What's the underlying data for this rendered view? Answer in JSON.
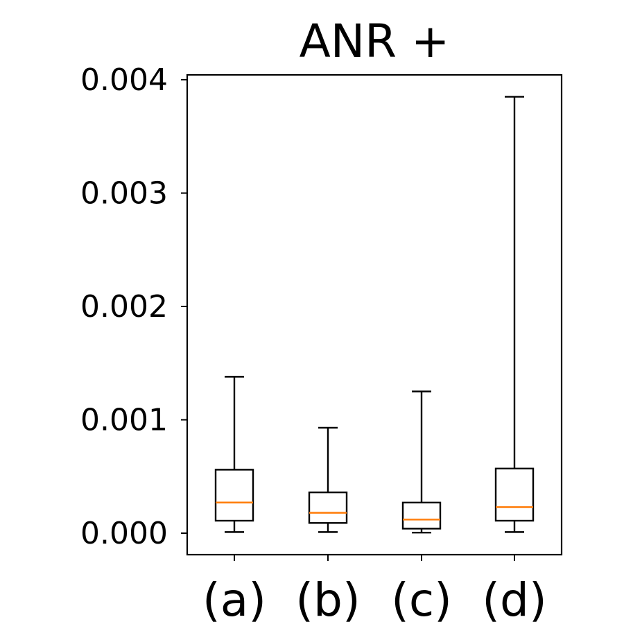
{
  "chart_data": {
    "type": "box",
    "title": "ANR +",
    "xlabel": "",
    "ylabel": "",
    "categories": [
      "(a)",
      "(b)",
      "(c)",
      "(d)"
    ],
    "ylim": [
      -0.0002,
      0.00404
    ],
    "yticks": [
      0.0,
      0.001,
      0.002,
      0.003,
      0.004
    ],
    "ytick_labels": [
      "0.000",
      "0.001",
      "0.002",
      "0.003",
      "0.004"
    ],
    "grid": false,
    "boxes": [
      {
        "category": "(a)",
        "whisker_low": 1e-05,
        "q1": 0.00011,
        "median": 0.00027,
        "q3": 0.00056,
        "whisker_high": 0.00138
      },
      {
        "category": "(b)",
        "whisker_low": 1e-05,
        "q1": 9e-05,
        "median": 0.00018,
        "q3": 0.00036,
        "whisker_high": 0.00093
      },
      {
        "category": "(c)",
        "whisker_low": 5e-06,
        "q1": 4e-05,
        "median": 0.00012,
        "q3": 0.00027,
        "whisker_high": 0.00125
      },
      {
        "category": "(d)",
        "whisker_low": 1e-05,
        "q1": 0.00011,
        "median": 0.00023,
        "q3": 0.00057,
        "whisker_high": 0.00385
      }
    ],
    "colors": {
      "box": "#000000",
      "median": "#ff7f0e",
      "axis": "#000000"
    }
  }
}
